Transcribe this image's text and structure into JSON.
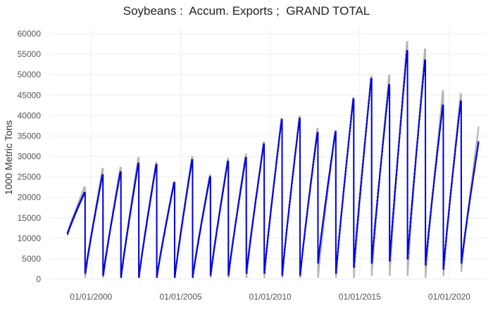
{
  "chart_data": {
    "type": "line",
    "title": "Soybeans :  Accum. Exports ;  GRAND TOTAL",
    "xlabel": "",
    "ylabel": "1000 Metric Tons",
    "ylim": [
      0,
      60000
    ],
    "yticks": [
      0,
      5000,
      10000,
      15000,
      20000,
      25000,
      30000,
      35000,
      40000,
      45000,
      50000,
      55000,
      60000
    ],
    "xticks": [
      "01/01/2000",
      "01/01/2005",
      "01/01/2010",
      "01/01/2015",
      "01/01/2020"
    ],
    "xlim": [
      "1997-09-01",
      "2022-02-15"
    ],
    "grid": true,
    "colors": {
      "primary": "#0000e6",
      "secondary": "#b4b4b4",
      "grid": "#eeeeee",
      "text": "#555555"
    },
    "series": [
      {
        "role": "primary",
        "color": "#0000e6",
        "years": [
          {
            "start": "1998-09-01",
            "first": 11000,
            "peak": 21200
          },
          {
            "start": "1999-09-01",
            "first": 1500,
            "peak": 25500
          },
          {
            "start": "2000-09-01",
            "first": 1000,
            "peak": 26200
          },
          {
            "start": "2001-09-01",
            "first": 500,
            "peak": 28300
          },
          {
            "start": "2002-09-01",
            "first": 500,
            "peak": 28000
          },
          {
            "start": "2003-09-01",
            "first": 500,
            "peak": 23600
          },
          {
            "start": "2004-09-01",
            "first": 500,
            "peak": 29200
          },
          {
            "start": "2005-09-01",
            "first": 500,
            "peak": 25000
          },
          {
            "start": "2006-09-01",
            "first": 1000,
            "peak": 28800
          },
          {
            "start": "2007-09-01",
            "first": 1000,
            "peak": 29700
          },
          {
            "start": "2008-09-01",
            "first": 1500,
            "peak": 33000
          },
          {
            "start": "2009-09-01",
            "first": 1500,
            "peak": 39000
          },
          {
            "start": "2010-09-01",
            "first": 1000,
            "peak": 39300
          },
          {
            "start": "2011-09-01",
            "first": 1000,
            "peak": 35800
          },
          {
            "start": "2012-09-01",
            "first": 4000,
            "peak": 36000
          },
          {
            "start": "2013-09-01",
            "first": 1500,
            "peak": 44000
          },
          {
            "start": "2014-09-01",
            "first": 3000,
            "peak": 49000
          },
          {
            "start": "2015-09-01",
            "first": 4000,
            "peak": 47500
          },
          {
            "start": "2016-09-01",
            "first": 4500,
            "peak": 55800
          },
          {
            "start": "2017-09-01",
            "first": 5000,
            "peak": 53500
          },
          {
            "start": "2018-09-01",
            "first": 3500,
            "peak": 42500
          },
          {
            "start": "2019-09-01",
            "first": 2500,
            "peak": 43500
          },
          {
            "start": "2020-09-01",
            "first": 4000,
            "peak": 33600
          }
        ]
      },
      {
        "role": "secondary",
        "color": "#b4b4b4",
        "years": [
          {
            "start": "1998-09-01",
            "first": 11000,
            "peak": 22500
          },
          {
            "start": "1999-09-01",
            "first": 500,
            "peak": 27000
          },
          {
            "start": "2000-09-01",
            "first": 500,
            "peak": 27300
          },
          {
            "start": "2001-09-01",
            "first": 500,
            "peak": 29700
          },
          {
            "start": "2002-09-01",
            "first": 500,
            "peak": 28500
          },
          {
            "start": "2003-09-01",
            "first": 500,
            "peak": 23800
          },
          {
            "start": "2004-09-01",
            "first": 500,
            "peak": 29900
          },
          {
            "start": "2005-09-01",
            "first": 500,
            "peak": 25500
          },
          {
            "start": "2006-09-01",
            "first": 500,
            "peak": 29500
          },
          {
            "start": "2007-09-01",
            "first": 500,
            "peak": 30500
          },
          {
            "start": "2008-09-01",
            "first": 500,
            "peak": 33500
          },
          {
            "start": "2009-09-01",
            "first": 500,
            "peak": 39300
          },
          {
            "start": "2010-09-01",
            "first": 500,
            "peak": 39800
          },
          {
            "start": "2011-09-01",
            "first": 500,
            "peak": 36800
          },
          {
            "start": "2012-09-01",
            "first": 500,
            "peak": 36300
          },
          {
            "start": "2013-09-01",
            "first": 500,
            "peak": 44300
          },
          {
            "start": "2014-09-01",
            "first": 500,
            "peak": 49600
          },
          {
            "start": "2015-09-01",
            "first": 1000,
            "peak": 49800
          },
          {
            "start": "2016-09-01",
            "first": 1000,
            "peak": 58000
          },
          {
            "start": "2017-09-01",
            "first": 1000,
            "peak": 56200
          },
          {
            "start": "2018-09-01",
            "first": 500,
            "peak": 46000
          },
          {
            "start": "2019-09-01",
            "first": 1000,
            "peak": 45300
          },
          {
            "start": "2020-09-01",
            "first": 2000,
            "peak": 37200
          }
        ]
      }
    ]
  }
}
